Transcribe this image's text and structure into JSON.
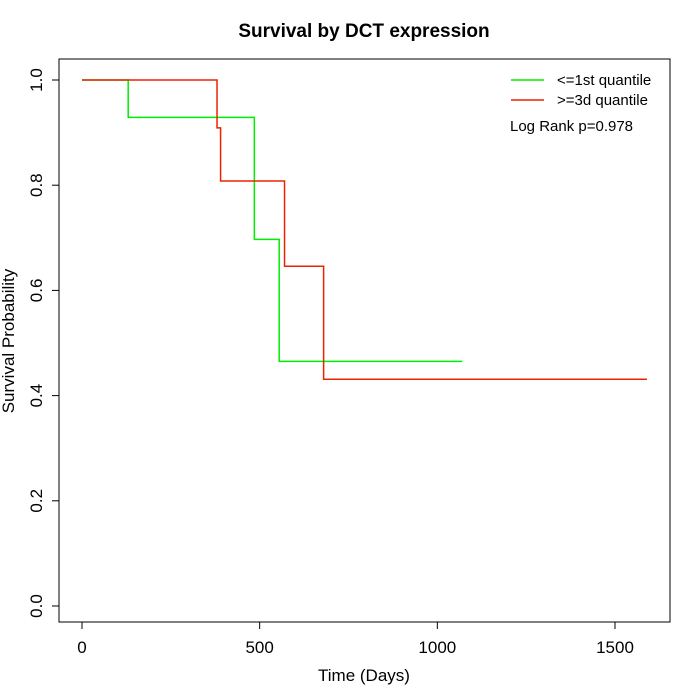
{
  "chart_data": {
    "type": "line",
    "title": "Survival by DCT expression",
    "xlabel": "Time (Days)",
    "ylabel": "Survival Probability",
    "xlim": [
      0,
      1600
    ],
    "ylim": [
      0,
      1.0
    ],
    "x_ticks": [
      0,
      500,
      1000,
      1500
    ],
    "x_tick_labels": [
      "0",
      "500",
      "1000",
      "1500"
    ],
    "y_ticks": [
      0.0,
      0.2,
      0.4,
      0.6,
      0.8,
      1.0
    ],
    "y_tick_labels": [
      "0.0",
      "0.2",
      "0.4",
      "0.6",
      "0.8",
      "1.0"
    ],
    "grid": false,
    "legend_position": "top-right",
    "annotation": "Log Rank p=0.978",
    "series": [
      {
        "name": "<=1st quantile",
        "color": "#00ee00",
        "step": true,
        "x": [
          0,
          130,
          485,
          555,
          1070
        ],
        "y": [
          1.0,
          0.929,
          0.697,
          0.465,
          0.465
        ]
      },
      {
        "name": ">=3d quantile",
        "color": "#ee2200",
        "step": true,
        "x": [
          0,
          380,
          390,
          570,
          680,
          1590
        ],
        "y": [
          1.0,
          0.909,
          0.808,
          0.646,
          0.431,
          0.431
        ]
      }
    ]
  }
}
